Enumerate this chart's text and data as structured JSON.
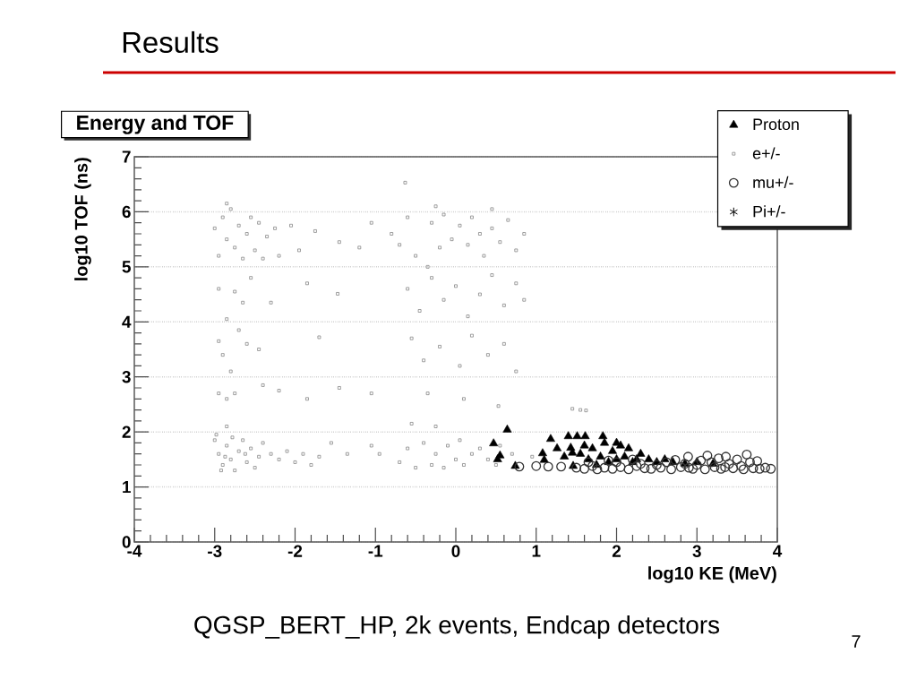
{
  "chart_data": {
    "type": "scatter",
    "title": "Results",
    "subtitle": "Energy and TOF",
    "xlabel": "log10 KE (MeV)",
    "ylabel": "log10 TOF (ns)",
    "annotations": [
      "QGSP_BERT_HP, 2k events, Endcap detectors",
      "7"
    ],
    "xlim": [
      -4,
      4
    ],
    "ylim": [
      0,
      7
    ],
    "xticks": [
      -4,
      -3,
      -2,
      -1,
      0,
      1,
      2,
      3,
      4
    ],
    "yticks": [
      0,
      1,
      2,
      3,
      4,
      5,
      6,
      7
    ],
    "grid": "y",
    "legend": "top right",
    "series": [
      {
        "name": "Proton",
        "color": "#000000",
        "marker": "triangle",
        "x": [
          0.47,
          0.64,
          0.55,
          0.52,
          0.74,
          1.18,
          1.4,
          1.51,
          1.61,
          1.83,
          1.26,
          1.08,
          1.43,
          1.1,
          1.46,
          1.35,
          1.55,
          1.65,
          1.7,
          1.8,
          1.9,
          1.95,
          2.05,
          2.1,
          2.15,
          2.2,
          2.3,
          2.4,
          1.75,
          2.0,
          2.25,
          2.5,
          2.6,
          2.7,
          2.85,
          3.0,
          3.2,
          1.6,
          1.45,
          1.85,
          2.0
        ],
        "values": [
          1.79,
          2.04,
          1.57,
          1.5,
          1.38,
          1.87,
          1.92,
          1.92,
          1.92,
          1.92,
          1.7,
          1.61,
          1.71,
          1.49,
          1.38,
          1.55,
          1.6,
          1.5,
          1.7,
          1.55,
          1.45,
          1.65,
          1.75,
          1.55,
          1.7,
          1.45,
          1.6,
          1.5,
          1.4,
          1.5,
          1.5,
          1.45,
          1.5,
          1.45,
          1.42,
          1.45,
          1.42,
          1.75,
          1.62,
          1.8,
          1.8
        ]
      },
      {
        "name": "e+/-",
        "color": "#777777",
        "marker": "square",
        "x": [
          -3.0,
          -2.95,
          -2.9,
          -2.85,
          -2.8,
          -2.75,
          -2.7,
          -2.65,
          -2.6,
          -2.55,
          -2.5,
          -2.45,
          -2.4,
          -2.3,
          -2.2,
          -2.1,
          -2.0,
          -1.9,
          -1.8,
          -1.7,
          -1.55,
          -1.35,
          -2.98,
          -2.92,
          -2.87,
          -2.78,
          -2.62,
          -2.85,
          -1.05,
          -0.95,
          -0.7,
          -0.6,
          -0.5,
          -0.4,
          -0.3,
          -0.25,
          -0.15,
          -0.1,
          0.0,
          0.05,
          0.1,
          0.2,
          0.3,
          0.4,
          0.5,
          0.55,
          0.7,
          0.95,
          -0.55,
          -0.25,
          -3.0,
          -2.95,
          -2.9,
          -2.85,
          -2.8,
          -2.75,
          -2.7,
          -2.65,
          -2.6,
          -2.55,
          -2.5,
          -2.45,
          -2.4,
          -2.35,
          -2.25,
          -2.2,
          -2.05,
          -1.95,
          -1.75,
          -1.45,
          -1.2,
          -1.05,
          -2.85,
          -2.95,
          -2.85,
          -2.75,
          -2.65,
          -2.55,
          -2.95,
          -2.9,
          -2.8,
          -2.6,
          -2.45,
          -2.3,
          -1.85,
          -1.47,
          -1.7,
          -2.7,
          -2.95,
          -2.85,
          -2.75,
          -2.4,
          -2.2,
          -1.85,
          -1.45,
          -1.05,
          -0.8,
          -0.7,
          -0.6,
          -0.5,
          -0.35,
          -0.3,
          -0.2,
          -0.15,
          -0.05,
          0.05,
          0.15,
          0.2,
          0.3,
          0.35,
          0.45,
          0.55,
          0.65,
          0.75,
          0.85,
          -0.25,
          0.45,
          -0.63,
          -0.6,
          -0.45,
          -0.3,
          -0.15,
          0.0,
          0.15,
          0.3,
          0.45,
          0.6,
          0.75,
          0.85,
          -0.55,
          -0.4,
          -0.2,
          0.05,
          0.2,
          0.4,
          0.6,
          0.75,
          -0.35,
          0.1,
          0.53,
          1.45,
          1.55,
          1.62
        ],
        "values": [
          1.85,
          1.6,
          1.4,
          1.75,
          1.5,
          1.3,
          1.65,
          1.85,
          1.45,
          1.7,
          1.35,
          1.55,
          1.8,
          1.6,
          1.5,
          1.65,
          1.45,
          1.6,
          1.4,
          1.55,
          1.8,
          1.6,
          1.95,
          1.3,
          1.55,
          1.9,
          1.6,
          2.1,
          1.75,
          1.6,
          1.45,
          1.7,
          1.35,
          1.8,
          1.4,
          1.6,
          1.35,
          1.75,
          1.5,
          1.85,
          1.4,
          1.6,
          1.7,
          1.5,
          1.4,
          1.75,
          1.6,
          1.55,
          2.15,
          2.1,
          5.7,
          5.2,
          5.9,
          5.5,
          6.05,
          5.35,
          5.75,
          5.15,
          5.6,
          5.9,
          5.3,
          5.8,
          5.15,
          5.55,
          5.7,
          5.2,
          5.75,
          5.3,
          5.65,
          5.45,
          5.35,
          5.8,
          6.15,
          4.6,
          4.05,
          4.55,
          4.35,
          4.8,
          3.65,
          3.4,
          3.1,
          3.6,
          3.5,
          4.35,
          4.7,
          4.51,
          3.72,
          3.85,
          2.7,
          2.6,
          2.7,
          2.85,
          2.75,
          2.6,
          2.8,
          2.7,
          5.6,
          5.4,
          5.9,
          5.2,
          5.0,
          5.8,
          5.35,
          5.95,
          5.5,
          5.75,
          5.4,
          5.9,
          5.6,
          5.2,
          5.7,
          5.45,
          5.85,
          5.3,
          5.6,
          6.1,
          6.05,
          6.53,
          4.6,
          4.2,
          4.8,
          4.4,
          4.65,
          4.1,
          4.5,
          4.85,
          4.3,
          4.7,
          4.4,
          3.7,
          3.3,
          3.55,
          3.2,
          3.75,
          3.4,
          3.6,
          3.1,
          2.7,
          2.6,
          2.47,
          2.42,
          2.4,
          2.39
        ]
      },
      {
        "name": "mu+/-",
        "color": "#333333",
        "marker": "circle",
        "x": [
          0.79,
          1.0,
          1.15,
          1.31,
          1.5,
          1.6,
          1.7,
          1.76,
          1.85,
          1.95,
          2.05,
          2.15,
          2.25,
          2.35,
          2.43,
          2.5,
          2.55,
          2.62,
          2.68,
          2.73,
          2.8,
          2.85,
          2.89,
          2.95,
          3.0,
          3.05,
          3.1,
          3.13,
          3.18,
          3.22,
          3.27,
          3.3,
          3.36,
          3.4,
          3.45,
          3.5,
          3.55,
          3.62,
          3.66,
          3.7,
          3.75,
          3.78,
          3.85,
          3.92,
          2.0,
          2.2,
          1.9,
          2.9,
          3.35,
          3.58,
          2.3,
          1.65
        ],
        "values": [
          1.37,
          1.38,
          1.37,
          1.37,
          1.35,
          1.33,
          1.38,
          1.32,
          1.35,
          1.33,
          1.36,
          1.32,
          1.38,
          1.34,
          1.33,
          1.4,
          1.35,
          1.45,
          1.32,
          1.49,
          1.36,
          1.42,
          1.55,
          1.33,
          1.4,
          1.48,
          1.32,
          1.57,
          1.45,
          1.36,
          1.52,
          1.33,
          1.55,
          1.42,
          1.34,
          1.5,
          1.38,
          1.59,
          1.45,
          1.34,
          1.47,
          1.33,
          1.35,
          1.33,
          1.45,
          1.5,
          1.48,
          1.35,
          1.36,
          1.32,
          1.42,
          1.45
        ]
      },
      {
        "name": "Pi+/-",
        "color": "#000000",
        "marker": "star"
      }
    ]
  }
}
